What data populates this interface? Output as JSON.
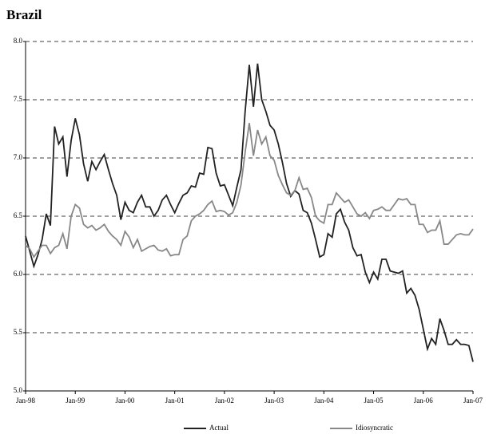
{
  "chart_data": {
    "type": "line",
    "title": "Brazil",
    "categories": [
      "Jan-98",
      null,
      null,
      null,
      null,
      null,
      null,
      null,
      null,
      null,
      null,
      null,
      "Jan-99",
      null,
      null,
      null,
      null,
      null,
      null,
      null,
      null,
      null,
      null,
      null,
      "Jan-00",
      null,
      null,
      null,
      null,
      null,
      null,
      null,
      null,
      null,
      null,
      null,
      "Jan-01",
      null,
      null,
      null,
      null,
      null,
      null,
      null,
      null,
      null,
      null,
      null,
      "Jan-02",
      null,
      null,
      null,
      null,
      null,
      null,
      null,
      null,
      null,
      null,
      null,
      "Jan-03",
      null,
      null,
      null,
      null,
      null,
      null,
      null,
      null,
      null,
      null,
      null,
      "Jan-04",
      null,
      null,
      null,
      null,
      null,
      null,
      null,
      null,
      null,
      null,
      null,
      "Jan-05",
      null,
      null,
      null,
      null,
      null,
      null,
      null,
      null,
      null,
      null,
      null,
      "Jan-06",
      null,
      null,
      null,
      null,
      null,
      null,
      null,
      null,
      null,
      null,
      null,
      "Jan-07"
    ],
    "series": [
      {
        "name": "Actual",
        "color": "#222222",
        "values": [
          6.33,
          6.2,
          6.07,
          6.17,
          6.3,
          6.52,
          6.42,
          7.27,
          7.12,
          7.18,
          6.84,
          7.15,
          7.34,
          7.2,
          6.95,
          6.8,
          6.97,
          6.9,
          6.97,
          7.03,
          6.9,
          6.78,
          6.68,
          6.47,
          6.62,
          6.55,
          6.53,
          6.62,
          6.68,
          6.58,
          6.58,
          6.5,
          6.55,
          6.64,
          6.68,
          6.6,
          6.53,
          6.61,
          6.68,
          6.7,
          6.76,
          6.75,
          6.87,
          6.86,
          7.09,
          7.08,
          6.87,
          6.76,
          6.77,
          6.68,
          6.59,
          6.75,
          6.9,
          7.4,
          7.8,
          7.44,
          7.81,
          7.5,
          7.4,
          7.28,
          7.24,
          7.12,
          6.96,
          6.78,
          6.67,
          6.72,
          6.69,
          6.55,
          6.53,
          6.44,
          6.3,
          6.15,
          6.17,
          6.35,
          6.32,
          6.52,
          6.56,
          6.45,
          6.38,
          6.23,
          6.16,
          6.17,
          6.02,
          5.93,
          6.02,
          5.96,
          6.13,
          6.13,
          6.03,
          6.02,
          6.01,
          6.03,
          5.84,
          5.88,
          5.82,
          5.7,
          5.53,
          5.36,
          5.45,
          5.4,
          5.62,
          5.52,
          5.4,
          5.4,
          5.44,
          5.4,
          5.4,
          5.39,
          5.25
        ]
      },
      {
        "name": "Idiosyncratic",
        "color": "#888888",
        "values": [
          6.25,
          6.22,
          6.15,
          6.2,
          6.25,
          6.25,
          6.18,
          6.23,
          6.25,
          6.35,
          6.22,
          6.5,
          6.6,
          6.57,
          6.43,
          6.4,
          6.42,
          6.38,
          6.4,
          6.43,
          6.37,
          6.33,
          6.3,
          6.25,
          6.37,
          6.32,
          6.23,
          6.3,
          6.2,
          6.22,
          6.24,
          6.25,
          6.21,
          6.2,
          6.22,
          6.16,
          6.17,
          6.17,
          6.3,
          6.33,
          6.46,
          6.5,
          6.52,
          6.55,
          6.6,
          6.63,
          6.54,
          6.55,
          6.54,
          6.51,
          6.53,
          6.62,
          6.77,
          7.05,
          7.3,
          7.02,
          7.24,
          7.12,
          7.18,
          7.02,
          6.98,
          6.85,
          6.77,
          6.7,
          6.68,
          6.72,
          6.83,
          6.73,
          6.74,
          6.66,
          6.5,
          6.46,
          6.44,
          6.6,
          6.6,
          6.7,
          6.66,
          6.62,
          6.64,
          6.58,
          6.52,
          6.5,
          6.53,
          6.48,
          6.55,
          6.56,
          6.58,
          6.55,
          6.55,
          6.6,
          6.65,
          6.64,
          6.65,
          6.6,
          6.6,
          6.43,
          6.43,
          6.36,
          6.38,
          6.38,
          6.46,
          6.26,
          6.26,
          6.3,
          6.34,
          6.35,
          6.34,
          6.34,
          6.39
        ]
      }
    ],
    "ylim": [
      5,
      8
    ],
    "yticks": [
      {
        "value": 5,
        "label": "5.0"
      },
      5.5,
      {
        "value": 6,
        "label": "6.0"
      },
      6.5,
      {
        "value": 7,
        "label": "7.0"
      },
      7.5,
      {
        "value": 8,
        "label": "8.0"
      }
    ],
    "grid": true,
    "legend": "bottom"
  }
}
